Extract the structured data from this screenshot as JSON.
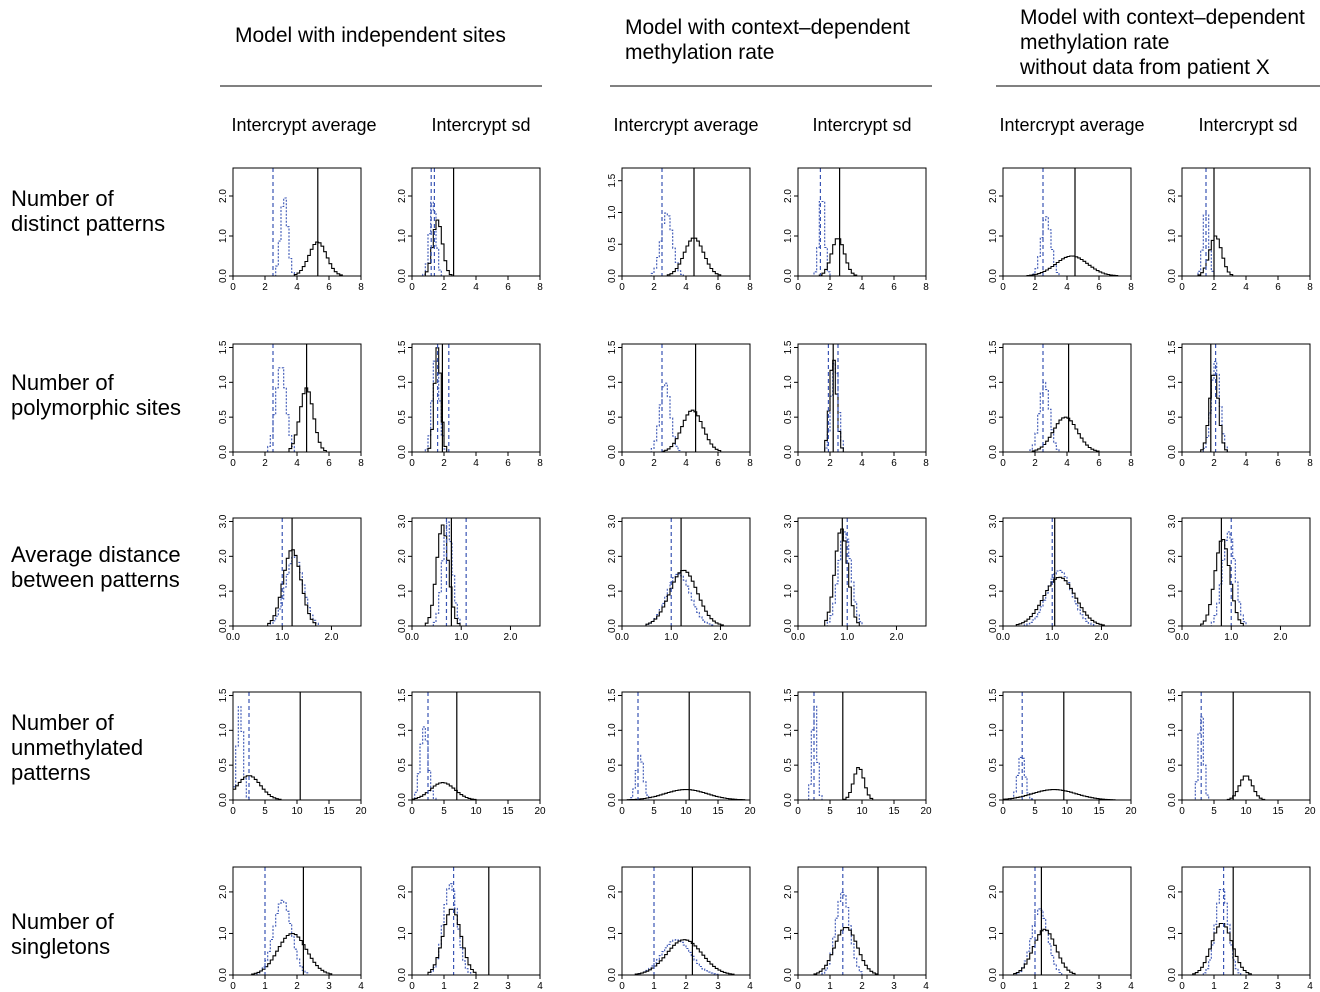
{
  "group_titles": [
    [
      "Model with independent sites"
    ],
    [
      "Model with context–dependent",
      "methylation rate"
    ],
    [
      "Model with context–dependent",
      "methylation rate",
      "without data from patient X"
    ]
  ],
  "column_titles": [
    "Intercrypt average",
    "Intercrypt sd"
  ],
  "row_labels": [
    [
      "Number of",
      "distinct patterns"
    ],
    [
      "Number of",
      "polymorphic sites"
    ],
    [
      "Average distance",
      "between patterns"
    ],
    [
      "Number of",
      "unmethylated",
      "patterns"
    ],
    [
      "Number of",
      "singletons"
    ]
  ],
  "chart_data": [
    {
      "type": "area",
      "row": 0,
      "col": 0,
      "xlim": [
        0,
        8
      ],
      "ylim": [
        0,
        2.7
      ],
      "xticks": [
        "0",
        "2",
        "4",
        "6",
        "8"
      ],
      "yticks": [
        "0.0",
        "1.0",
        "2.0"
      ],
      "obs": 5.3,
      "ref": 2.5,
      "solid": {
        "mean": 5.3,
        "sd": 0.55,
        "peak": 0.85
      },
      "dotted": {
        "mean": 3.2,
        "sd": 0.22,
        "peak": 2.0
      }
    },
    {
      "type": "area",
      "row": 0,
      "col": 1,
      "xlim": [
        0,
        8
      ],
      "ylim": [
        0,
        2.7
      ],
      "xticks": [
        "0",
        "2",
        "4",
        "6",
        "8"
      ],
      "yticks": [
        "0.0",
        "1.0",
        "2.0"
      ],
      "obs": 2.6,
      "ref": 1.2,
      "ref2": 1.4,
      "solid": {
        "mean": 1.6,
        "sd": 0.3,
        "peak": 1.4
      },
      "dotted": {
        "mean": 1.3,
        "sd": 0.2,
        "peak": 1.9
      }
    },
    {
      "type": "area",
      "row": 0,
      "col": 2,
      "xlim": [
        0,
        8
      ],
      "ylim": [
        0,
        1.7
      ],
      "xticks": [
        "0",
        "2",
        "4",
        "6",
        "8"
      ],
      "yticks": [
        "0.0",
        "0.5",
        "1.0",
        "1.5"
      ],
      "obs": 4.5,
      "ref": 2.5,
      "solid": {
        "mean": 4.5,
        "sd": 0.6,
        "peak": 0.6
      },
      "dotted": {
        "mean": 2.8,
        "sd": 0.35,
        "peak": 1.0
      }
    },
    {
      "type": "area",
      "row": 0,
      "col": 3,
      "xlim": [
        0,
        8
      ],
      "ylim": [
        0,
        2.7
      ],
      "xticks": [
        "0",
        "2",
        "4",
        "6",
        "8"
      ],
      "yticks": [
        "0.0",
        "1.0",
        "2.0"
      ],
      "obs": 2.6,
      "ref": 1.4,
      "solid": {
        "mean": 2.5,
        "sd": 0.4,
        "peak": 0.95
      },
      "dotted": {
        "mean": 1.5,
        "sd": 0.17,
        "peak": 2.1
      }
    },
    {
      "type": "area",
      "row": 0,
      "col": 4,
      "xlim": [
        0,
        8
      ],
      "ylim": [
        0,
        2.7
      ],
      "xticks": [
        "0",
        "2",
        "4",
        "6",
        "8"
      ],
      "yticks": [
        "0.0",
        "1.0",
        "2.0"
      ],
      "obs": 4.5,
      "ref": 2.5,
      "solid": {
        "mean": 4.3,
        "sd": 1.0,
        "peak": 0.5
      },
      "dotted": {
        "mean": 2.7,
        "sd": 0.3,
        "peak": 1.5
      }
    },
    {
      "type": "area",
      "row": 0,
      "col": 5,
      "xlim": [
        0,
        8
      ],
      "ylim": [
        0,
        2.7
      ],
      "xticks": [
        "0",
        "2",
        "4",
        "6",
        "8"
      ],
      "yticks": [
        "0.0",
        "1.0",
        "2.0"
      ],
      "obs": 2.0,
      "ref": 1.5,
      "solid": {
        "mean": 2.1,
        "sd": 0.38,
        "peak": 1.0
      },
      "dotted": {
        "mean": 1.5,
        "sd": 0.18,
        "peak": 1.7
      }
    },
    {
      "type": "area",
      "row": 1,
      "col": 0,
      "xlim": [
        0,
        8
      ],
      "ylim": [
        0,
        1.55
      ],
      "xticks": [
        "0",
        "2",
        "4",
        "6",
        "8"
      ],
      "yticks": [
        "0.0",
        "0.5",
        "1.0",
        "1.5"
      ],
      "obs": 4.6,
      "ref": 2.5,
      "solid": {
        "mean": 4.6,
        "sd": 0.42,
        "peak": 0.92
      },
      "dotted": {
        "mean": 3.0,
        "sd": 0.32,
        "peak": 1.25
      }
    },
    {
      "type": "area",
      "row": 1,
      "col": 1,
      "xlim": [
        0,
        8
      ],
      "ylim": [
        0,
        1.55
      ],
      "xticks": [
        "0",
        "2",
        "4",
        "6",
        "8"
      ],
      "yticks": [
        "0.0",
        "0.5",
        "1.0",
        "1.5"
      ],
      "obs": 1.9,
      "ref": 2.3,
      "ref2": 1.6,
      "solid": {
        "mean": 1.6,
        "sd": 0.2,
        "peak": 1.5
      },
      "dotted": {
        "mean": 1.5,
        "sd": 0.22,
        "peak": 1.4
      }
    },
    {
      "type": "area",
      "row": 1,
      "col": 2,
      "xlim": [
        0,
        8
      ],
      "ylim": [
        0,
        1.55
      ],
      "xticks": [
        "0",
        "2",
        "4",
        "6",
        "8"
      ],
      "yticks": [
        "0.0",
        "0.5",
        "1.0",
        "1.5"
      ],
      "obs": 4.6,
      "ref": 2.5,
      "solid": {
        "mean": 4.4,
        "sd": 0.65,
        "peak": 0.6
      },
      "dotted": {
        "mean": 2.7,
        "sd": 0.32,
        "peak": 1.0
      }
    },
    {
      "type": "area",
      "row": 1,
      "col": 3,
      "xlim": [
        0,
        8
      ],
      "ylim": [
        0,
        1.55
      ],
      "xticks": [
        "0",
        "2",
        "4",
        "6",
        "8"
      ],
      "yticks": [
        "0.0",
        "0.5",
        "1.0",
        "1.5"
      ],
      "obs": 2.2,
      "ref": 1.9,
      "ref2": 2.5,
      "solid": {
        "mean": 2.2,
        "sd": 0.22,
        "peak": 1.35
      },
      "dotted": {
        "mean": 2.3,
        "sd": 0.22,
        "peak": 1.3
      }
    },
    {
      "type": "area",
      "row": 1,
      "col": 4,
      "xlim": [
        0,
        8
      ],
      "ylim": [
        0,
        1.55
      ],
      "xticks": [
        "0",
        "2",
        "4",
        "6",
        "8"
      ],
      "yticks": [
        "0.0",
        "0.5",
        "1.0",
        "1.5"
      ],
      "obs": 4.1,
      "ref": 2.5,
      "solid": {
        "mean": 3.9,
        "sd": 0.75,
        "peak": 0.5
      },
      "dotted": {
        "mean": 2.6,
        "sd": 0.32,
        "peak": 1.0
      }
    },
    {
      "type": "area",
      "row": 1,
      "col": 5,
      "xlim": [
        0,
        8
      ],
      "ylim": [
        0,
        1.55
      ],
      "xticks": [
        "0",
        "2",
        "4",
        "6",
        "8"
      ],
      "yticks": [
        "0.0",
        "0.5",
        "1.0",
        "1.5"
      ],
      "obs": 1.8,
      "ref": 2.1,
      "solid": {
        "mean": 2.0,
        "sd": 0.28,
        "peak": 1.15
      },
      "dotted": {
        "mean": 2.1,
        "sd": 0.27,
        "peak": 1.3
      }
    },
    {
      "type": "area",
      "row": 2,
      "col": 0,
      "xlim": [
        0,
        2.6
      ],
      "ylim": [
        0,
        3.1
      ],
      "xticks": [
        "0.0",
        "1.0",
        "2.0"
      ],
      "yticks": [
        "0.0",
        "1.0",
        "2.0",
        "3.0"
      ],
      "obs": 1.2,
      "ref": 1.0,
      "solid": {
        "mean": 1.2,
        "sd": 0.18,
        "peak": 2.2
      },
      "dotted": {
        "mean": 1.25,
        "sd": 0.18,
        "peak": 2.0
      }
    },
    {
      "type": "area",
      "row": 2,
      "col": 1,
      "xlim": [
        0,
        2.6
      ],
      "ylim": [
        0,
        3.1
      ],
      "xticks": [
        "0.0",
        "1.0",
        "2.0"
      ],
      "yticks": [
        "0.0",
        "1.0",
        "2.0",
        "3.0"
      ],
      "obs": 0.8,
      "ref": 0.7,
      "ref2": 1.1,
      "solid": {
        "mean": 0.62,
        "sd": 0.12,
        "peak": 2.9
      },
      "dotted": {
        "mean": 0.72,
        "sd": 0.1,
        "peak": 3.0
      }
    },
    {
      "type": "area",
      "row": 2,
      "col": 2,
      "xlim": [
        0,
        2.6
      ],
      "ylim": [
        0,
        3.1
      ],
      "xticks": [
        "0.0",
        "1.0",
        "2.0"
      ],
      "yticks": [
        "0.0",
        "1.0",
        "2.0",
        "3.0"
      ],
      "obs": 1.2,
      "ref": 1.0,
      "solid": {
        "mean": 1.25,
        "sd": 0.28,
        "peak": 1.6
      },
      "dotted": {
        "mean": 1.15,
        "sd": 0.24,
        "peak": 1.5
      }
    },
    {
      "type": "area",
      "row": 2,
      "col": 3,
      "xlim": [
        0,
        2.6
      ],
      "ylim": [
        0,
        3.1
      ],
      "xticks": [
        "0.0",
        "1.0",
        "2.0"
      ],
      "yticks": [
        "0.0",
        "1.0",
        "2.0",
        "3.0"
      ],
      "obs": 0.9,
      "ref": 1.0,
      "solid": {
        "mean": 0.88,
        "sd": 0.13,
        "peak": 2.8
      },
      "dotted": {
        "mean": 0.95,
        "sd": 0.13,
        "peak": 2.7
      }
    },
    {
      "type": "area",
      "row": 2,
      "col": 4,
      "xlim": [
        0,
        2.6
      ],
      "ylim": [
        0,
        3.1
      ],
      "xticks": [
        "0.0",
        "1.0",
        "2.0"
      ],
      "yticks": [
        "0.0",
        "1.0",
        "2.0",
        "3.0"
      ],
      "obs": 1.05,
      "ref": 1.0,
      "solid": {
        "mean": 1.15,
        "sd": 0.32,
        "peak": 1.4
      },
      "dotted": {
        "mean": 1.15,
        "sd": 0.25,
        "peak": 1.6
      }
    },
    {
      "type": "area",
      "row": 2,
      "col": 5,
      "xlim": [
        0,
        2.6
      ],
      "ylim": [
        0,
        3.1
      ],
      "xticks": [
        "0.0",
        "1.0",
        "2.0"
      ],
      "yticks": [
        "0.0",
        "1.0",
        "2.0",
        "3.0"
      ],
      "obs": 0.8,
      "ref": 1.0,
      "solid": {
        "mean": 0.82,
        "sd": 0.15,
        "peak": 2.5
      },
      "dotted": {
        "mean": 0.95,
        "sd": 0.13,
        "peak": 2.7
      }
    },
    {
      "type": "area",
      "row": 3,
      "col": 0,
      "xlim": [
        0,
        20
      ],
      "ylim": [
        0,
        1.55
      ],
      "xticks": [
        "0",
        "5",
        "10",
        "15",
        "20"
      ],
      "yticks": [
        "0.0",
        "0.5",
        "1.0",
        "1.5"
      ],
      "obs": 10.5,
      "ref": 2.5,
      "solid": {
        "mean": 2.5,
        "sd": 1.8,
        "peak": 0.35
      },
      "dotted": {
        "mean": 1.1,
        "sd": 0.45,
        "peak": 1.35
      }
    },
    {
      "type": "area",
      "row": 3,
      "col": 1,
      "xlim": [
        0,
        20
      ],
      "ylim": [
        0,
        1.55
      ],
      "xticks": [
        "0",
        "5",
        "10",
        "15",
        "20"
      ],
      "yticks": [
        "0.0",
        "0.5",
        "1.0",
        "1.5"
      ],
      "obs": 7.0,
      "ref": 2.5,
      "solid": {
        "mean": 4.8,
        "sd": 1.9,
        "peak": 0.25
      },
      "dotted": {
        "mean": 1.9,
        "sd": 0.6,
        "peak": 1.05
      }
    },
    {
      "type": "area",
      "row": 3,
      "col": 2,
      "xlim": [
        0,
        20
      ],
      "ylim": [
        0,
        1.55
      ],
      "xticks": [
        "0",
        "5",
        "10",
        "15",
        "20"
      ],
      "yticks": [
        "0.0",
        "0.5",
        "1.0",
        "1.5"
      ],
      "obs": 10.5,
      "ref": 2.5,
      "solid": {
        "mean": 10.0,
        "sd": 3.3,
        "peak": 0.15
      },
      "dotted": {
        "mean": 2.8,
        "sd": 0.55,
        "peak": 0.65
      }
    },
    {
      "type": "area",
      "row": 3,
      "col": 3,
      "xlim": [
        0,
        20
      ],
      "ylim": [
        0,
        1.55
      ],
      "xticks": [
        "0",
        "5",
        "10",
        "15",
        "20"
      ],
      "yticks": [
        "0.0",
        "0.5",
        "1.0",
        "1.5"
      ],
      "obs": 7.0,
      "ref": 2.5,
      "solid": {
        "mean": 9.5,
        "sd": 0.8,
        "peak": 0.47
      },
      "dotted": {
        "mean": 2.6,
        "sd": 0.38,
        "peak": 1.4
      }
    },
    {
      "type": "area",
      "row": 3,
      "col": 4,
      "xlim": [
        0,
        20
      ],
      "ylim": [
        0,
        1.55
      ],
      "xticks": [
        "0",
        "5",
        "10",
        "15",
        "20"
      ],
      "yticks": [
        "0.0",
        "0.5",
        "1.0",
        "1.5"
      ],
      "obs": 9.5,
      "ref": 3.0,
      "solid": {
        "mean": 8.0,
        "sd": 3.4,
        "peak": 0.15
      },
      "dotted": {
        "mean": 2.9,
        "sd": 0.55,
        "peak": 0.65
      }
    },
    {
      "type": "area",
      "row": 3,
      "col": 5,
      "xlim": [
        0,
        20
      ],
      "ylim": [
        0,
        1.55
      ],
      "xticks": [
        "0",
        "5",
        "10",
        "15",
        "20"
      ],
      "yticks": [
        "0.0",
        "0.5",
        "1.0",
        "1.5"
      ],
      "obs": 8.0,
      "ref": 3.0,
      "solid": {
        "mean": 10.0,
        "sd": 1.0,
        "peak": 0.35
      },
      "dotted": {
        "mean": 3.0,
        "sd": 0.4,
        "peak": 1.25
      }
    },
    {
      "type": "area",
      "row": 4,
      "col": 0,
      "xlim": [
        0,
        4
      ],
      "ylim": [
        0,
        2.6
      ],
      "xticks": [
        "0",
        "1",
        "2",
        "3",
        "4"
      ],
      "yticks": [
        "0.0",
        "1.0",
        "2.0"
      ],
      "obs": 2.2,
      "ref": 1.0,
      "solid": {
        "mean": 1.85,
        "sd": 0.45,
        "peak": 1.0
      },
      "dotted": {
        "mean": 1.55,
        "sd": 0.28,
        "peak": 1.8
      }
    },
    {
      "type": "area",
      "row": 4,
      "col": 1,
      "xlim": [
        0,
        4
      ],
      "ylim": [
        0,
        2.6
      ],
      "xticks": [
        "0",
        "1",
        "2",
        "3",
        "4"
      ],
      "yticks": [
        "0.0",
        "1.0",
        "2.0"
      ],
      "obs": 2.4,
      "ref": 1.3,
      "solid": {
        "mean": 1.25,
        "sd": 0.28,
        "peak": 1.6
      },
      "dotted": {
        "mean": 1.2,
        "sd": 0.22,
        "peak": 2.2
      }
    },
    {
      "type": "area",
      "row": 4,
      "col": 2,
      "xlim": [
        0,
        4
      ],
      "ylim": [
        0,
        2.6
      ],
      "xticks": [
        "0",
        "1",
        "2",
        "3",
        "4"
      ],
      "yticks": [
        "0.0",
        "1.0",
        "2.0"
      ],
      "obs": 2.2,
      "ref": 1.0,
      "solid": {
        "mean": 1.95,
        "sd": 0.55,
        "peak": 0.85
      },
      "dotted": {
        "mean": 1.7,
        "sd": 0.45,
        "peak": 0.85
      }
    },
    {
      "type": "area",
      "row": 4,
      "col": 3,
      "xlim": [
        0,
        4
      ],
      "ylim": [
        0,
        2.6
      ],
      "xticks": [
        "0",
        "1",
        "2",
        "3",
        "4"
      ],
      "yticks": [
        "0.0",
        "1.0",
        "2.0"
      ],
      "obs": 2.5,
      "ref": 1.4,
      "solid": {
        "mean": 1.5,
        "sd": 0.35,
        "peak": 1.15
      },
      "dotted": {
        "mean": 1.4,
        "sd": 0.22,
        "peak": 2.0
      }
    },
    {
      "type": "area",
      "row": 4,
      "col": 4,
      "xlim": [
        0,
        4
      ],
      "ylim": [
        0,
        2.6
      ],
      "xticks": [
        "0",
        "1",
        "2",
        "3",
        "4"
      ],
      "yticks": [
        "0.0",
        "1.0",
        "2.0"
      ],
      "obs": 1.2,
      "ref": 1.0,
      "solid": {
        "mean": 1.3,
        "sd": 0.35,
        "peak": 1.1
      },
      "dotted": {
        "mean": 1.15,
        "sd": 0.25,
        "peak": 1.6
      }
    },
    {
      "type": "area",
      "row": 4,
      "col": 5,
      "xlim": [
        0,
        4
      ],
      "ylim": [
        0,
        2.6
      ],
      "xticks": [
        "0",
        "1",
        "2",
        "3",
        "4"
      ],
      "yticks": [
        "0.0",
        "1.0",
        "2.0"
      ],
      "obs": 1.6,
      "ref": 1.3,
      "solid": {
        "mean": 1.25,
        "sd": 0.32,
        "peak": 1.25
      },
      "dotted": {
        "mean": 1.25,
        "sd": 0.2,
        "peak": 2.1
      }
    }
  ]
}
